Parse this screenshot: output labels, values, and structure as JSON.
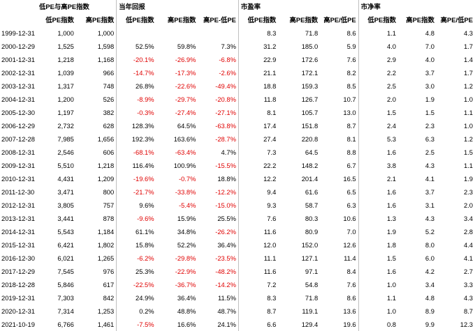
{
  "groups": [
    "低PE与高PE指数",
    "当年回报",
    "市盈率",
    "市净率"
  ],
  "subheaders": [
    "低PE指数",
    "高PE指数",
    "低PE指数",
    "高PE指数",
    "高PE-低PE",
    "低PE指数",
    "高PE指数",
    "高PE/低PE",
    "低PE指数",
    "高PE指数",
    "高PE/低PE"
  ],
  "rows": [
    {
      "date": "1999-12-31",
      "cells": [
        "1,000",
        "1,000",
        "",
        "",
        "",
        "8.3",
        "71.8",
        "8.6",
        "1.1",
        "4.8",
        "4.3"
      ]
    },
    {
      "date": "2000-12-29",
      "cells": [
        "1,525",
        "1,598",
        "52.5%",
        "59.8%",
        "7.3%",
        "31.2",
        "185.0",
        "5.9",
        "4.0",
        "7.0",
        "1.7"
      ]
    },
    {
      "date": "2001-12-31",
      "cells": [
        "1,218",
        "1,168",
        "-20.1%",
        "-26.9%",
        "-6.8%",
        "22.9",
        "172.6",
        "7.6",
        "2.9",
        "4.0",
        "1.4"
      ]
    },
    {
      "date": "2002-12-31",
      "cells": [
        "1,039",
        "966",
        "-14.7%",
        "-17.3%",
        "-2.6%",
        "21.1",
        "172.1",
        "8.2",
        "2.2",
        "3.7",
        "1.7"
      ]
    },
    {
      "date": "2003-12-31",
      "cells": [
        "1,317",
        "748",
        "26.8%",
        "-22.6%",
        "-49.4%",
        "18.8",
        "159.3",
        "8.5",
        "2.5",
        "3.0",
        "1.2"
      ]
    },
    {
      "date": "2004-12-31",
      "cells": [
        "1,200",
        "526",
        "-8.9%",
        "-29.7%",
        "-20.8%",
        "11.8",
        "126.7",
        "10.7",
        "2.0",
        "1.9",
        "1.0"
      ]
    },
    {
      "date": "2005-12-30",
      "cells": [
        "1,197",
        "382",
        "-0.3%",
        "-27.4%",
        "-27.1%",
        "8.1",
        "105.7",
        "13.0",
        "1.5",
        "1.5",
        "1.1"
      ]
    },
    {
      "date": "2006-12-29",
      "cells": [
        "2,732",
        "628",
        "128.3%",
        "64.5%",
        "-63.8%",
        "17.4",
        "151.8",
        "8.7",
        "2.4",
        "2.3",
        "1.0"
      ]
    },
    {
      "date": "2007-12-28",
      "cells": [
        "7,985",
        "1,656",
        "192.3%",
        "163.6%",
        "-28.7%",
        "27.4",
        "220.8",
        "8.1",
        "5.3",
        "6.3",
        "1.2"
      ]
    },
    {
      "date": "2008-12-31",
      "cells": [
        "2,546",
        "606",
        "-68.1%",
        "-63.4%",
        "4.7%",
        "7.3",
        "64.5",
        "8.8",
        "1.6",
        "2.5",
        "1.5"
      ]
    },
    {
      "date": "2009-12-31",
      "cells": [
        "5,510",
        "1,218",
        "116.4%",
        "100.9%",
        "-15.5%",
        "22.2",
        "148.2",
        "6.7",
        "3.8",
        "4.3",
        "1.1"
      ]
    },
    {
      "date": "2010-12-31",
      "cells": [
        "4,431",
        "1,209",
        "-19.6%",
        "-0.7%",
        "18.8%",
        "12.2",
        "201.4",
        "16.5",
        "2.1",
        "4.1",
        "1.9"
      ]
    },
    {
      "date": "2011-12-30",
      "cells": [
        "3,471",
        "800",
        "-21.7%",
        "-33.8%",
        "-12.2%",
        "9.4",
        "61.6",
        "6.5",
        "1.6",
        "3.7",
        "2.3"
      ]
    },
    {
      "date": "2012-12-31",
      "cells": [
        "3,805",
        "757",
        "9.6%",
        "-5.4%",
        "-15.0%",
        "9.3",
        "58.7",
        "6.3",
        "1.6",
        "3.1",
        "2.0"
      ]
    },
    {
      "date": "2013-12-31",
      "cells": [
        "3,441",
        "878",
        "-9.6%",
        "15.9%",
        "25.5%",
        "7.6",
        "80.3",
        "10.6",
        "1.3",
        "4.3",
        "3.4"
      ]
    },
    {
      "date": "2014-12-31",
      "cells": [
        "5,543",
        "1,184",
        "61.1%",
        "34.8%",
        "-26.2%",
        "11.6",
        "80.9",
        "7.0",
        "1.9",
        "5.2",
        "2.8"
      ]
    },
    {
      "date": "2015-12-31",
      "cells": [
        "6,421",
        "1,802",
        "15.8%",
        "52.2%",
        "36.4%",
        "12.0",
        "152.0",
        "12.6",
        "1.8",
        "8.0",
        "4.4"
      ]
    },
    {
      "date": "2016-12-30",
      "cells": [
        "6,021",
        "1,265",
        "-6.2%",
        "-29.8%",
        "-23.5%",
        "11.1",
        "127.1",
        "11.4",
        "1.5",
        "6.0",
        "4.1"
      ]
    },
    {
      "date": "2017-12-29",
      "cells": [
        "7,545",
        "976",
        "25.3%",
        "-22.9%",
        "-48.2%",
        "11.6",
        "97.1",
        "8.4",
        "1.6",
        "4.2",
        "2.7"
      ]
    },
    {
      "date": "2018-12-28",
      "cells": [
        "5,846",
        "617",
        "-22.5%",
        "-36.7%",
        "-14.2%",
        "7.2",
        "54.8",
        "7.6",
        "1.0",
        "3.4",
        "3.3"
      ]
    },
    {
      "date": "2019-12-31",
      "cells": [
        "7,303",
        "842",
        "24.9%",
        "36.4%",
        "11.5%",
        "8.3",
        "71.8",
        "8.6",
        "1.1",
        "4.8",
        "4.3"
      ]
    },
    {
      "date": "2020-12-31",
      "cells": [
        "7,314",
        "1,253",
        "0.2%",
        "48.8%",
        "48.7%",
        "8.7",
        "119.1",
        "13.6",
        "1.0",
        "8.9",
        "8.7"
      ]
    },
    {
      "date": "2021-10-19",
      "cells": [
        "6,766",
        "1,461",
        "-7.5%",
        "16.6%",
        "24.1%",
        "6.6",
        "129.4",
        "19.6",
        "0.8",
        "9.9",
        "12.3"
      ]
    }
  ],
  "colors": {
    "negative": "#e00000",
    "separator": "#bfbfbf"
  }
}
